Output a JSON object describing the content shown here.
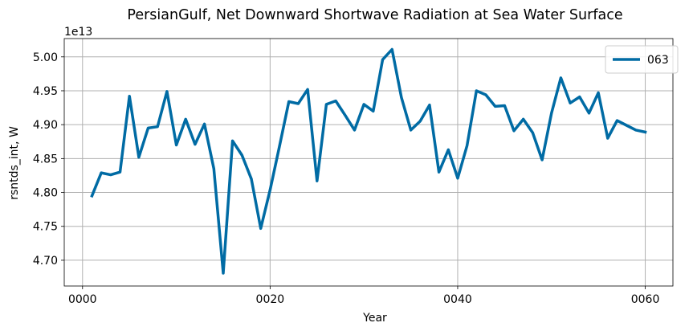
{
  "chart_data": {
    "type": "line",
    "title": "PersianGulf, Net Downward Shortwave Radiation at Sea Water Surface",
    "xlabel": "Year",
    "ylabel": "rsntds_int, W",
    "y_offset_text": "1e13",
    "y_scale": 10000000000000.0,
    "xlim": [
      -1.95,
      62.95
    ],
    "ylim": [
      4.662,
      5.027
    ],
    "grid": true,
    "legend_position": "upper right",
    "x_ticks": [
      0,
      20,
      40,
      60
    ],
    "x_tick_labels": [
      "0000",
      "0020",
      "0040",
      "0060"
    ],
    "y_ticks": [
      4.7,
      4.75,
      4.8,
      4.85,
      4.9,
      4.95,
      5.0
    ],
    "y_tick_labels": [
      "4.70",
      "4.75",
      "4.80",
      "4.85",
      "4.90",
      "4.95",
      "5.00"
    ],
    "series": [
      {
        "name": "063",
        "color": "#006ba4",
        "x": [
          1,
          2,
          3,
          4,
          5,
          6,
          7,
          8,
          9,
          10,
          11,
          12,
          13,
          14,
          15,
          16,
          17,
          18,
          19,
          20,
          21,
          22,
          23,
          24,
          25,
          26,
          27,
          28,
          29,
          30,
          31,
          32,
          33,
          34,
          35,
          36,
          37,
          38,
          39,
          40,
          41,
          42,
          43,
          44,
          45,
          46,
          47,
          48,
          49,
          50,
          51,
          52,
          53,
          54,
          55,
          56,
          57,
          58,
          59,
          60
        ],
        "y": [
          4.795,
          4.829,
          4.826,
          4.83,
          4.942,
          4.852,
          4.895,
          4.897,
          4.949,
          4.87,
          4.908,
          4.871,
          4.901,
          4.835,
          4.681,
          4.876,
          4.855,
          4.82,
          4.747,
          4.804,
          4.868,
          4.934,
          4.931,
          4.952,
          4.817,
          4.93,
          4.935,
          4.914,
          4.892,
          4.93,
          4.92,
          4.996,
          5.011,
          4.94,
          4.892,
          4.905,
          4.929,
          4.83,
          4.863,
          4.821,
          4.869,
          4.95,
          4.944,
          4.927,
          4.928,
          4.891,
          4.908,
          4.888,
          4.848,
          4.917,
          4.969,
          4.932,
          4.941,
          4.917,
          4.947,
          4.88,
          4.906,
          4.899,
          4.892,
          4.889
        ]
      }
    ]
  }
}
